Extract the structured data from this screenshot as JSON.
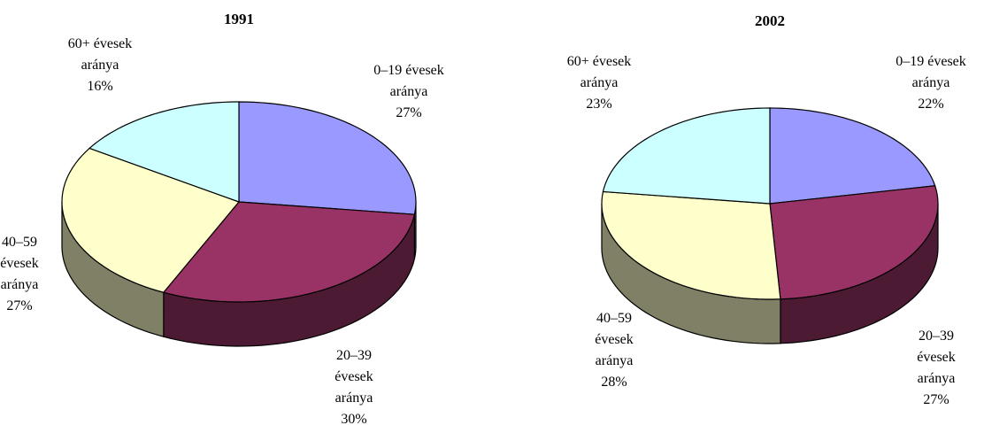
{
  "chart_data": [
    {
      "type": "pie",
      "title": "1991",
      "categories": [
        "0–19 évesek aránya",
        "20–39 évesek aránya",
        "40–59 évesek aránya",
        "60+ évesek aránya"
      ],
      "values": [
        27,
        30,
        27,
        16
      ],
      "value_labels": [
        "27%",
        "30%",
        "27%",
        "16%"
      ],
      "colors": [
        "#9999ff",
        "#993366",
        "#ffffcc",
        "#ccffff"
      ]
    },
    {
      "type": "pie",
      "title": "2002",
      "categories": [
        "0–19 évesek aránya",
        "20–39 évesek aránya",
        "40–59 évesek aránya",
        "60+ évesek aránya"
      ],
      "values": [
        22,
        27,
        28,
        23
      ],
      "value_labels": [
        "22%",
        "27%",
        "28%",
        "23%"
      ],
      "colors": [
        "#9999ff",
        "#993366",
        "#ffffcc",
        "#ccffff"
      ]
    }
  ]
}
